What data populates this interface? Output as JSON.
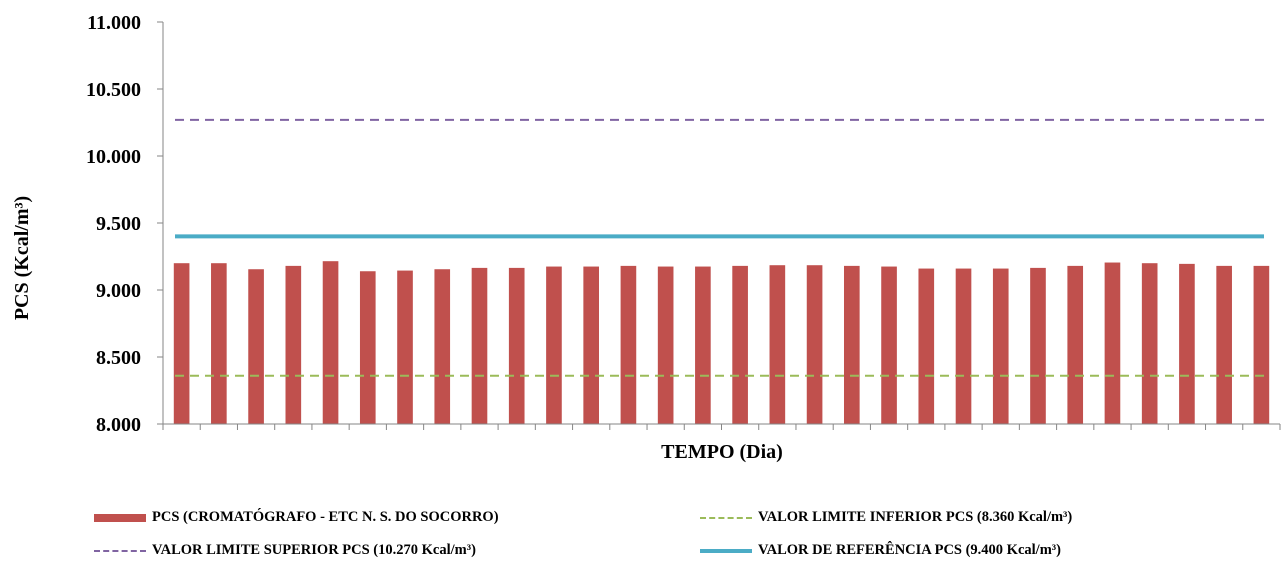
{
  "chart_data": {
    "type": "bar",
    "xlabel": "TEMPO (Dia)",
    "ylabel": "PCS (Kcal/m³)",
    "ylim": [
      8000,
      11000
    ],
    "yticks": [
      8000,
      8500,
      9000,
      9500,
      10000,
      10500,
      11000
    ],
    "ytick_labels": [
      "8.000",
      "8.500",
      "9.000",
      "9.500",
      "10.000",
      "10.500",
      "11.000"
    ],
    "grid": false,
    "legend_position": "bottom",
    "series": [
      {
        "name": "PCS (CROMATÓGRAFO - ETC N. S. DO SOCORRO)",
        "kind": "bar",
        "color": "#C0504D",
        "values": [
          9200,
          9200,
          9155,
          9180,
          9215,
          9140,
          9145,
          9155,
          9165,
          9165,
          9175,
          9175,
          9180,
          9175,
          9175,
          9180,
          9185,
          9185,
          9180,
          9175,
          9160,
          9160,
          9160,
          9165,
          9180,
          9205,
          9200,
          9195,
          9180,
          9180
        ]
      },
      {
        "name": "VALOR LIMITE INFERIOR PCS (8.360 Kcal/m³)",
        "kind": "line",
        "style": "dashed",
        "color": "#9BBB59",
        "value": 8360
      },
      {
        "name": "VALOR LIMITE SUPERIOR PCS (10.270 Kcal/m³)",
        "kind": "line",
        "style": "dashed",
        "color": "#8064A2",
        "value": 10270
      },
      {
        "name": "VALOR DE REFERÊNCIA PCS (9.400 Kcal/m³)",
        "kind": "line",
        "style": "solid",
        "color": "#4BACC6",
        "value": 9400
      }
    ]
  }
}
